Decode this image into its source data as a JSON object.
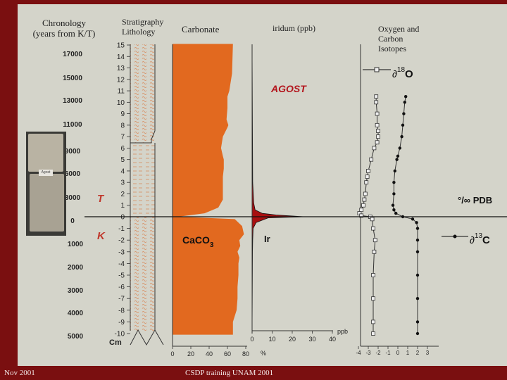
{
  "footer": {
    "left": "Nov 2001",
    "center": "CSDP training UNAM 2001"
  },
  "photo_label": "Agost",
  "headers": {
    "chronology_line1": "Chronology",
    "chronology_line2": "(years from K/T)",
    "strat_line1": "Stratigraphy",
    "strat_line2": "Lithology",
    "carbonate": "Carbonate",
    "iridium": "iridum (ppb)",
    "iso_line1": "Oxygen and",
    "iso_line2": "Carbon",
    "iso_line3": "Isotopes"
  },
  "labels": {
    "agost": "AGOST",
    "T": "T",
    "K": "K",
    "caco3_main": "CaCO",
    "caco3_sub": "3",
    "ir": "Ir",
    "cm": "Cm",
    "percent": "%",
    "ppb": "ppb",
    "pdb": "°/∞ PDB",
    "d18o_prefix": "∂",
    "d18o_sup": "18",
    "d18o_el": "O",
    "d13c_prefix": "∂",
    "d13c_sup": "13",
    "d13c_el": "C"
  },
  "colors": {
    "background": "#d4d4ca",
    "frame": "#7a0f10",
    "carbonate": "#e2691f",
    "iridium": "#a80f10",
    "agost": "#b3141c",
    "tk": "#c0372b"
  },
  "chart_data": [
    {
      "type": "table",
      "title": "Chronology",
      "values_above": [
        17000,
        15000,
        13000,
        11000,
        9000,
        6000,
        3000,
        0
      ],
      "values_below": [
        1000,
        2000,
        3000,
        4000,
        5000
      ]
    },
    {
      "type": "area",
      "title": "Carbonate",
      "xlabel": "%",
      "x_ticks": [
        0,
        20,
        40,
        60,
        80
      ],
      "depth_ticks": [
        15,
        14,
        13,
        12,
        11,
        10,
        9,
        8,
        7,
        6,
        5,
        4,
        3,
        2,
        1,
        0,
        -1,
        -2,
        -3,
        -4,
        -5,
        -6,
        -7,
        -8,
        -9,
        -10
      ],
      "ylabel": "Cm",
      "depth": [
        15.1,
        12.5,
        11,
        10.5,
        9.5,
        8.5,
        8,
        7.8,
        7,
        6,
        5.3,
        5,
        4.2,
        3.5,
        2.5,
        1.5,
        0.8,
        0.3,
        0,
        -0.2,
        -0.8,
        -1.5,
        -2,
        -2.5,
        -3,
        -3.5,
        -4,
        -5,
        -6,
        -7,
        -8,
        -9,
        -10.1
      ],
      "carbonate_pct": [
        66,
        65,
        62,
        60,
        60,
        59,
        61,
        60,
        55,
        53,
        55,
        56,
        56,
        55,
        55,
        55,
        50,
        35,
        6,
        68,
        76,
        78,
        73,
        74,
        71,
        73,
        72,
        72,
        71,
        71,
        70,
        66,
        66
      ]
    },
    {
      "type": "area",
      "title": "iridum (ppb)",
      "xlabel": "ppb",
      "x_ticks": [
        0,
        10,
        20,
        30,
        40
      ],
      "depth": [
        15,
        3,
        1.2,
        0.6,
        0.3,
        0.15,
        0,
        -0.1,
        -0.5,
        -1,
        -2,
        -3,
        -10
      ],
      "iridium_ppb": [
        0,
        0.3,
        0.8,
        1.5,
        5,
        12,
        26,
        8,
        2,
        0.5,
        0.3,
        0.2,
        0
      ]
    },
    {
      "type": "line",
      "title": "Oxygen and Carbon Isotopes",
      "xlabel": "°/∞ PDB",
      "x_ticks": [
        -4,
        -3,
        -2,
        -1,
        0,
        1,
        2,
        3
      ],
      "series": [
        {
          "name": "∂18O",
          "depth": [
            10.5,
            10,
            9,
            8,
            7.5,
            7,
            6.5,
            6,
            5,
            4,
            3.5,
            3,
            2,
            1.5,
            1,
            0.6,
            0.3,
            0.1,
            0,
            -0.2,
            -1,
            -2,
            -3,
            -5,
            -7,
            -9,
            -10
          ],
          "values": [
            -2.2,
            -2.2,
            -2.1,
            -2.1,
            -2.0,
            -2.0,
            -2.1,
            -2.4,
            -2.7,
            -3.0,
            -3.1,
            -3.2,
            -3.3,
            -3.4,
            -3.5,
            -3.7,
            -3.9,
            -3.7,
            -2.8,
            -2.6,
            -2.5,
            -2.3,
            -2.4,
            -2.5,
            -2.5,
            -2.5,
            -2.5
          ]
        },
        {
          "name": "∂13C",
          "depth": [
            10.5,
            10,
            9,
            8,
            7,
            6,
            5.3,
            5,
            4,
            3,
            2,
            1,
            0.6,
            0.3,
            0,
            -0.2,
            -0.5,
            -1,
            -2,
            -3,
            -5,
            -7,
            -9,
            -10
          ],
          "values": [
            0.8,
            0.7,
            0.6,
            0.5,
            0.4,
            0.2,
            0.0,
            -0.1,
            -0.3,
            -0.4,
            -0.4,
            -0.5,
            -0.4,
            -0.2,
            0.5,
            1.5,
            1.9,
            2.0,
            2.0,
            2.0,
            2.0,
            2.0,
            2.0,
            2.0
          ]
        }
      ]
    }
  ]
}
